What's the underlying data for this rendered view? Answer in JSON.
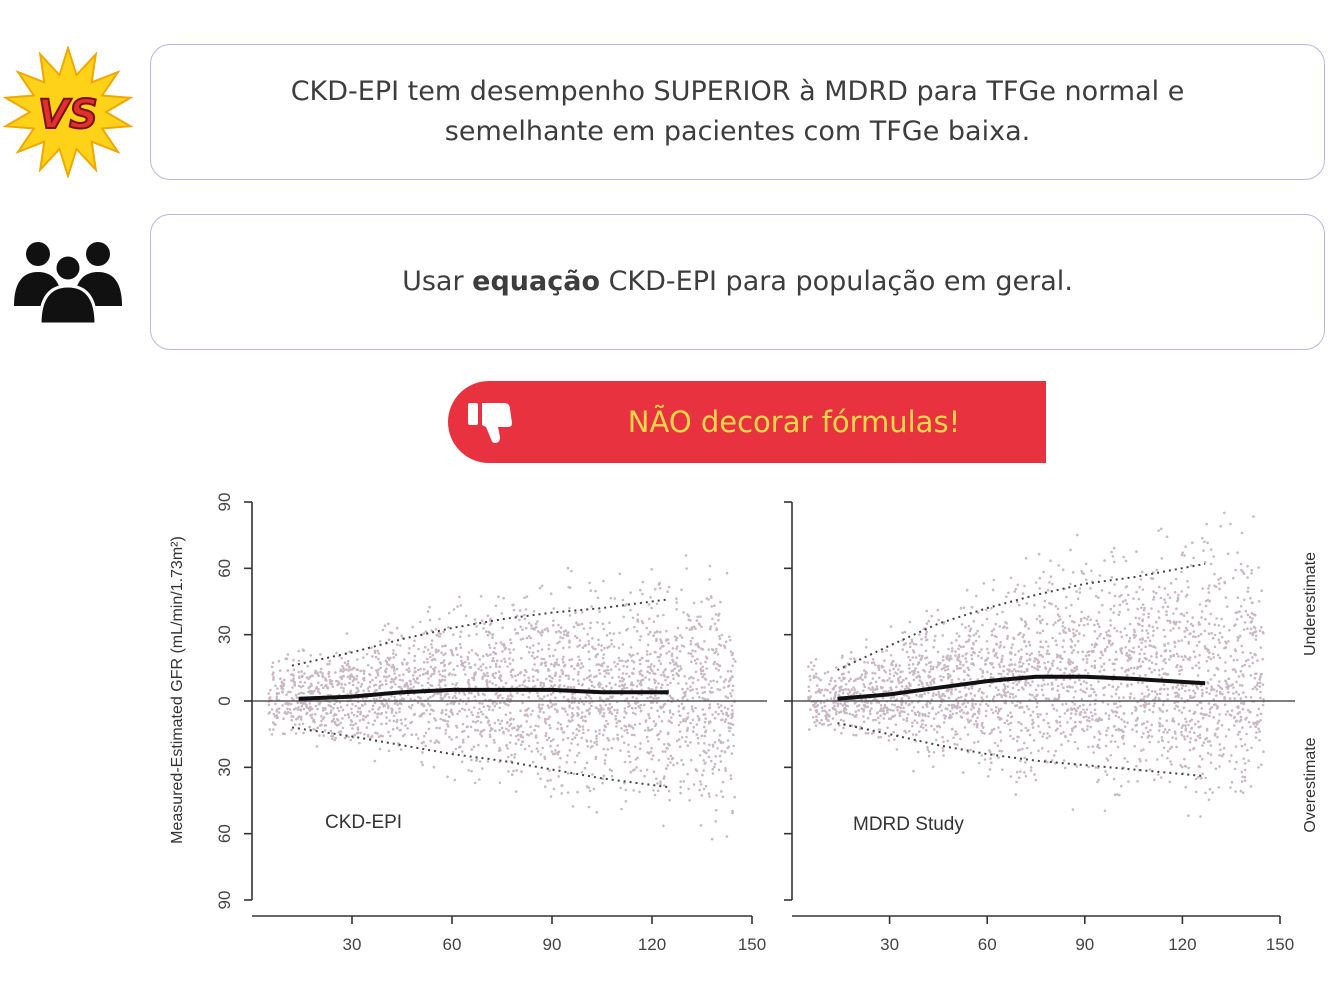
{
  "boxes": {
    "box1_line1": "CKD-EPI tem desempenho SUPERIOR à MDRD para TFGe normal e",
    "box1_line2": "semelhante em pacientes com TFGe baixa.",
    "box2_before": "Usar ",
    "box2_bold": "equação",
    "box2_after": " CKD-EPI para população em geral."
  },
  "icons": {
    "vs": "vs-burst-icon",
    "vs_text": "VS",
    "people": "group-people-icon",
    "thumb": "thumbs-down-icon"
  },
  "banner": {
    "text": "NÃO decorar fórmulas!"
  },
  "colors": {
    "banner_bg": "#e8323f",
    "banner_text": "#ffd84a",
    "box_border": "#b9b6ea",
    "scatter": "#c9b8c4"
  },
  "chart_data": [
    {
      "type": "scatter",
      "panel_label": "CKD-EPI",
      "ylabel": "Measured-Estimated GFR (mL/min/1.73m²)",
      "xlim": [
        0,
        150
      ],
      "ylim": [
        -90,
        90
      ],
      "xticks": [
        30,
        60,
        90,
        120,
        150
      ],
      "yticks": [
        -90,
        -60,
        -30,
        0,
        30,
        60,
        90
      ],
      "reference_line": 0,
      "median_line": {
        "x": [
          14,
          30,
          45,
          60,
          75,
          90,
          105,
          125
        ],
        "y": [
          1,
          2,
          4,
          5,
          5,
          5,
          4,
          4
        ]
      },
      "upper_line": {
        "x": [
          12,
          30,
          45,
          60,
          75,
          90,
          105,
          125
        ],
        "y": [
          16,
          22,
          28,
          33,
          37,
          40,
          42,
          46
        ]
      },
      "lower_line": {
        "x": [
          12,
          30,
          45,
          60,
          75,
          90,
          105,
          125
        ],
        "y": [
          -12,
          -16,
          -20,
          -24,
          -27,
          -31,
          -35,
          -39
        ]
      },
      "scatter_x_range": [
        5,
        145
      ],
      "scatter_density": "dense"
    },
    {
      "type": "scatter",
      "panel_label": "MDRD Study",
      "right_labels": [
        "Underestimate",
        "Overestimate"
      ],
      "xlim": [
        0,
        150
      ],
      "ylim": [
        -90,
        90
      ],
      "xticks": [
        30,
        60,
        90,
        120,
        150
      ],
      "yticks": [
        -90,
        -60,
        -30,
        0,
        30,
        60,
        90
      ],
      "reference_line": 0,
      "median_line": {
        "x": [
          14,
          30,
          45,
          60,
          75,
          90,
          105,
          127
        ],
        "y": [
          1,
          3,
          6,
          9,
          11,
          11,
          10,
          8
        ]
      },
      "upper_line": {
        "x": [
          14,
          30,
          45,
          60,
          75,
          90,
          105,
          127
        ],
        "y": [
          14,
          25,
          35,
          42,
          48,
          53,
          56,
          62
        ]
      },
      "lower_line": {
        "x": [
          14,
          30,
          45,
          60,
          75,
          90,
          105,
          127
        ],
        "y": [
          -10,
          -15,
          -20,
          -24,
          -27,
          -29,
          -31,
          -34
        ]
      },
      "scatter_x_range": [
        5,
        145
      ],
      "scatter_density": "dense"
    }
  ]
}
